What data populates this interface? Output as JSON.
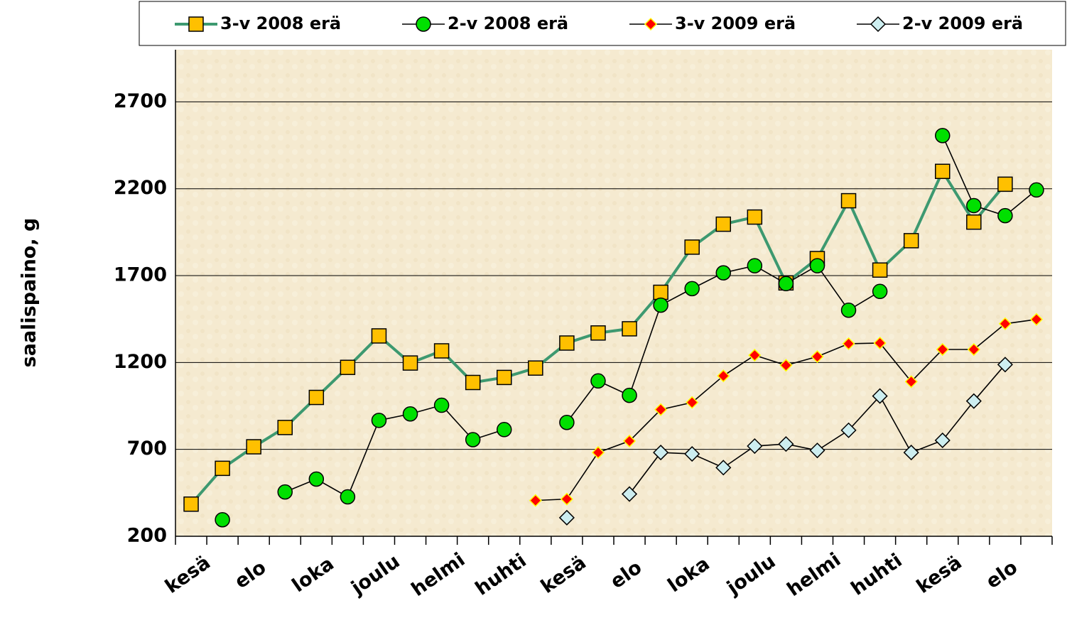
{
  "chart_data": {
    "type": "line",
    "y_label": "saalispaino, g",
    "categories": [
      "kesä",
      null,
      "elo",
      null,
      "loka",
      null,
      "joulu",
      null,
      "helmi",
      null,
      "huhti",
      null,
      "kesä",
      null,
      "elo",
      null,
      "loka",
      null,
      "joulu",
      null,
      "helmi",
      null,
      "huhti",
      null,
      "kesä",
      null,
      "elo",
      null
    ],
    "series": [
      {
        "name": "3-v 2008 erä",
        "color": "#ffc000",
        "line_color": "#3d9970",
        "marker": "square",
        "values": [
          385,
          591,
          715,
          826,
          999,
          1172,
          1353,
          1197,
          1267,
          1085,
          1114,
          1168,
          1312,
          1370,
          1394,
          1604,
          1864,
          1996,
          2037,
          1658,
          1798,
          2131,
          1732,
          1901,
          2300,
          2008,
          2226,
          null
        ]
      },
      {
        "name": "2-v 2008 erä",
        "color": "#00e000",
        "line_color": "#000000",
        "marker": "circle",
        "values": [
          null,
          295,
          null,
          455,
          529,
          427,
          867,
          904,
          954,
          756,
          814,
          null,
          855,
          1094,
          1011,
          1530,
          1625,
          1716,
          1757,
          1654,
          1757,
          1501,
          1609,
          null,
          2506,
          2103,
          2045,
          2193
        ]
      },
      {
        "name": "3-v 2009 erä",
        "color": "#ff0000",
        "line_color": "#000000",
        "marker": "diamond-red",
        "values": [
          null,
          null,
          null,
          null,
          null,
          null,
          null,
          null,
          null,
          null,
          null,
          406,
          414,
          682,
          748,
          929,
          970,
          1123,
          1242,
          1184,
          1234,
          1308,
          1312,
          1090,
          1275,
          1275,
          1423,
          1448
        ]
      },
      {
        "name": "2-v 2009 erä",
        "color": "#cdeef0",
        "line_color": "#000000",
        "marker": "diamond",
        "values": [
          null,
          null,
          null,
          null,
          null,
          null,
          null,
          null,
          null,
          null,
          null,
          null,
          307,
          null,
          443,
          682,
          674,
          595,
          719,
          731,
          694,
          810,
          1007,
          682,
          752,
          978,
          1188,
          null
        ]
      }
    ],
    "ylim": [
      200,
      3000
    ],
    "yticks": [
      200,
      700,
      1200,
      1700,
      2200,
      2700
    ],
    "grid": true,
    "legend": "top"
  }
}
